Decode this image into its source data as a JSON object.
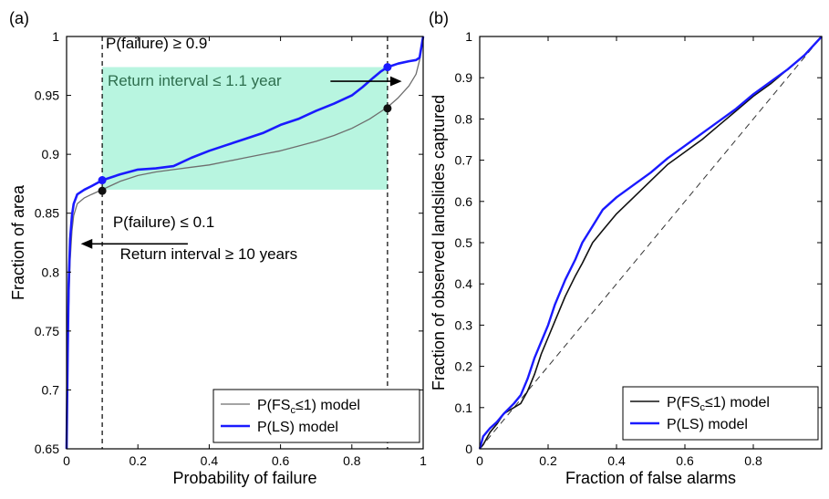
{
  "panels": {
    "a": {
      "label": "(a)"
    },
    "b": {
      "label": "(b)"
    }
  },
  "chart_data": [
    {
      "type": "line",
      "panel": "(a)",
      "xlabel": "Probability of failure",
      "ylabel": "Fraction of area",
      "xlim": [
        0,
        1
      ],
      "ylim": [
        0.65,
        1
      ],
      "xticks": [
        0,
        0.2,
        0.4,
        0.6,
        0.8,
        1
      ],
      "xtick_labels": [
        "0",
        "0.2",
        "0.4",
        "0.6",
        "0.8",
        "1"
      ],
      "yticks": [
        0.65,
        0.7,
        0.75,
        0.8,
        0.85,
        0.9,
        0.95,
        1
      ],
      "ytick_labels": [
        "0.65",
        "0.7",
        "0.75",
        "0.8",
        "0.85",
        "0.9",
        "0.95",
        "1"
      ],
      "grid": false,
      "legend_position": "bottom-right",
      "series": [
        {
          "name": "P(FS≤  1) model",
          "legend_main": "P(FS",
          "legend_sub": "c",
          "legend_rest": "≤1) model",
          "color": "#6e6e6e",
          "x": [
            0,
            0.003,
            0.006,
            0.01,
            0.015,
            0.02,
            0.03,
            0.05,
            0.07,
            0.1,
            0.15,
            0.2,
            0.25,
            0.3,
            0.35,
            0.4,
            0.45,
            0.5,
            0.55,
            0.6,
            0.65,
            0.7,
            0.75,
            0.8,
            0.85,
            0.9,
            0.93,
            0.96,
            0.98,
            0.99,
            1
          ],
          "y": [
            0.65,
            0.72,
            0.77,
            0.81,
            0.835,
            0.848,
            0.858,
            0.863,
            0.866,
            0.87,
            0.877,
            0.882,
            0.885,
            0.887,
            0.889,
            0.891,
            0.894,
            0.897,
            0.9,
            0.903,
            0.907,
            0.911,
            0.916,
            0.922,
            0.93,
            0.94,
            0.948,
            0.958,
            0.968,
            0.98,
            1
          ]
        },
        {
          "name": "P(LS) model",
          "legend_main": "P(LS) model",
          "color": "#1a1aff",
          "x": [
            0,
            0.003,
            0.006,
            0.01,
            0.015,
            0.02,
            0.03,
            0.05,
            0.07,
            0.1,
            0.15,
            0.2,
            0.25,
            0.3,
            0.35,
            0.4,
            0.45,
            0.5,
            0.55,
            0.6,
            0.65,
            0.7,
            0.75,
            0.8,
            0.83,
            0.86,
            0.88,
            0.9,
            0.93,
            0.96,
            0.98,
            0.99,
            1
          ],
          "y": [
            0.65,
            0.73,
            0.79,
            0.828,
            0.848,
            0.858,
            0.866,
            0.87,
            0.873,
            0.878,
            0.883,
            0.887,
            0.888,
            0.89,
            0.897,
            0.903,
            0.908,
            0.913,
            0.918,
            0.925,
            0.93,
            0.937,
            0.943,
            0.95,
            0.957,
            0.965,
            0.97,
            0.974,
            0.977,
            0.979,
            0.98,
            0.982,
            1
          ]
        }
      ],
      "vlines": [
        0.1,
        0.9
      ],
      "shaded_region": {
        "x": [
          0.1,
          0.9
        ],
        "y": [
          0.87,
          0.974
        ],
        "color": "#b8f5e0"
      },
      "markers": [
        {
          "x": 0.1,
          "y": 0.878,
          "color": "#1a1aff"
        },
        {
          "x": 0.1,
          "y": 0.869,
          "color": "#111111"
        },
        {
          "x": 0.9,
          "y": 0.974,
          "color": "#1a1aff"
        },
        {
          "x": 0.9,
          "y": 0.939,
          "color": "#111111"
        }
      ],
      "annotations": [
        {
          "text": "P(failure) ≥ 0.9",
          "x": 0.11,
          "y": 0.99,
          "color": "#000000"
        },
        {
          "text": "Return interval ≤ 1.1 year",
          "x": 0.115,
          "y": 0.958,
          "color": "#2e6e4e"
        },
        {
          "text": "P(failure) ≤ 0.1",
          "x": 0.13,
          "y": 0.838,
          "color": "#000000"
        },
        {
          "text": "Return interval ≥ 10 years",
          "x": 0.15,
          "y": 0.811,
          "color": "#000000"
        }
      ],
      "arrows": [
        {
          "from": [
            0.74,
            0.962
          ],
          "to": [
            0.94,
            0.962
          ]
        },
        {
          "from": [
            0.34,
            0.824
          ],
          "to": [
            0.04,
            0.824
          ]
        }
      ]
    },
    {
      "type": "line",
      "panel": "(b)",
      "xlabel": "Fraction of false alarms",
      "ylabel": "Fraction of observed landslides captured",
      "xlim": [
        0,
        1
      ],
      "ylim": [
        0,
        1
      ],
      "xticks": [
        0,
        0.2,
        0.4,
        0.6,
        0.8
      ],
      "xtick_labels": [
        "0",
        "0.2",
        "0.4",
        "0.6",
        "0.8"
      ],
      "yticks": [
        0,
        0.1,
        0.2,
        0.3,
        0.4,
        0.5,
        0.6,
        0.7,
        0.8,
        0.9,
        1
      ],
      "ytick_labels": [
        "0",
        "0.1",
        "0.2",
        "0.3",
        "0.4",
        "0.5",
        "0.6",
        "0.7",
        "0.8",
        "0.9",
        "1"
      ],
      "grid": false,
      "legend_position": "bottom-right",
      "series": [
        {
          "name": "P(FSc≤1) model",
          "legend_main": "P(FS",
          "legend_sub": "c",
          "legend_rest": "≤1) model",
          "color": "#111111",
          "x": [
            0,
            0.01,
            0.03,
            0.05,
            0.07,
            0.1,
            0.12,
            0.14,
            0.16,
            0.18,
            0.2,
            0.22,
            0.25,
            0.28,
            0.3,
            0.33,
            0.36,
            0.4,
            0.45,
            0.5,
            0.55,
            0.6,
            0.65,
            0.7,
            0.75,
            0.8,
            0.85,
            0.9,
            0.95,
            1
          ],
          "y": [
            0,
            0.01,
            0.04,
            0.06,
            0.085,
            0.1,
            0.11,
            0.14,
            0.18,
            0.23,
            0.27,
            0.31,
            0.37,
            0.42,
            0.45,
            0.5,
            0.53,
            0.57,
            0.61,
            0.65,
            0.69,
            0.72,
            0.75,
            0.785,
            0.82,
            0.855,
            0.885,
            0.92,
            0.955,
            1
          ]
        },
        {
          "name": "P(LS) model",
          "legend_main": "P(LS) model",
          "color": "#1a1aff",
          "x": [
            0,
            0.01,
            0.03,
            0.05,
            0.07,
            0.1,
            0.12,
            0.14,
            0.16,
            0.18,
            0.2,
            0.22,
            0.25,
            0.28,
            0.3,
            0.33,
            0.36,
            0.4,
            0.45,
            0.5,
            0.55,
            0.6,
            0.65,
            0.7,
            0.75,
            0.8,
            0.85,
            0.9,
            0.95,
            1
          ],
          "y": [
            0,
            0.03,
            0.05,
            0.065,
            0.085,
            0.11,
            0.13,
            0.17,
            0.22,
            0.26,
            0.3,
            0.35,
            0.41,
            0.46,
            0.5,
            0.54,
            0.58,
            0.61,
            0.64,
            0.67,
            0.705,
            0.735,
            0.765,
            0.795,
            0.825,
            0.86,
            0.89,
            0.92,
            0.955,
            1
          ]
        }
      ],
      "reference_line": {
        "x": [
          0,
          1
        ],
        "y": [
          0,
          1
        ],
        "style": "dashed"
      }
    }
  ]
}
